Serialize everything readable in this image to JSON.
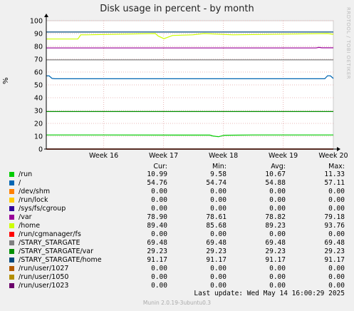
{
  "title": "Disk usage in percent - by month",
  "side_label": "RRDTOOL / TOBI OETIKER",
  "y_unit": "%",
  "headers": {
    "cur": "Cur:",
    "min": "Min:",
    "avg": "Avg:",
    "max": "Max:"
  },
  "last_update": "Last update:  Wed May 14 16:00:29 2025",
  "footer": "Munin 2.0.19-3ubuntu0.3",
  "chart_data": {
    "type": "line",
    "title": "Disk usage in percent - by month",
    "ylabel": "%",
    "ylim": [
      0,
      100
    ],
    "yticks": [
      0,
      10,
      20,
      30,
      40,
      50,
      60,
      70,
      80,
      90,
      100
    ],
    "xticks": [
      "Week 16",
      "Week 17",
      "Week 18",
      "Week 19",
      "Week 20"
    ],
    "grid": true,
    "series": [
      {
        "name": "/run",
        "color": "#00cc00",
        "x": [
          0,
          20,
          57,
          58,
          60,
          62,
          72,
          100
        ],
        "values": [
          11.0,
          11.0,
          10.9,
          10.2,
          9.6,
          10.8,
          11.0,
          11.0
        ]
      },
      {
        "name": "/",
        "color": "#0066b3",
        "x": [
          0,
          1,
          2,
          3,
          97,
          98,
          99,
          100
        ],
        "values": [
          57.0,
          57.0,
          55.0,
          54.8,
          54.8,
          57.1,
          57.0,
          55.0
        ]
      },
      {
        "name": "/dev/shm",
        "color": "#ff8000",
        "x": [
          0,
          100
        ],
        "values": [
          0,
          0
        ]
      },
      {
        "name": "/run/lock",
        "color": "#ffcc00",
        "x": [
          0,
          100
        ],
        "values": [
          0,
          0
        ]
      },
      {
        "name": "/sys/fs/cgroup",
        "color": "#330099",
        "x": [
          0,
          100
        ],
        "values": [
          0,
          0
        ]
      },
      {
        "name": "/var",
        "color": "#990099",
        "x": [
          0,
          94,
          95,
          96,
          100
        ],
        "values": [
          78.8,
          78.8,
          79.2,
          78.9,
          78.9
        ]
      },
      {
        "name": "/home",
        "color": "#ccff00",
        "x": [
          0,
          11,
          12,
          14,
          38,
          39,
          41,
          44,
          51,
          55,
          65,
          98,
          100
        ],
        "values": [
          85.7,
          85.7,
          89.0,
          89.0,
          90.0,
          88.0,
          86.0,
          88.5,
          89.0,
          90.0,
          89.0,
          90.0,
          89.4
        ]
      },
      {
        "name": "/run/cgmanager/fs",
        "color": "#ff0000",
        "x": [
          0,
          100
        ],
        "values": [
          0,
          0
        ]
      },
      {
        "name": "/STARY_STARGATE",
        "color": "#808080",
        "x": [
          0,
          100
        ],
        "values": [
          69.48,
          69.48
        ]
      },
      {
        "name": "/STARY_STARGATE/var",
        "color": "#008f00",
        "x": [
          0,
          100
        ],
        "values": [
          29.23,
          29.23
        ]
      },
      {
        "name": "/STARY_STARGATE/home",
        "color": "#00487d",
        "x": [
          0,
          100
        ],
        "values": [
          91.17,
          91.17
        ]
      },
      {
        "name": "/run/user/1027",
        "color": "#b35a00",
        "x": [
          0,
          100
        ],
        "values": [
          0,
          0
        ]
      },
      {
        "name": "/run/user/1050",
        "color": "#b38f00",
        "x": [
          0,
          100
        ],
        "values": [
          0,
          0
        ]
      },
      {
        "name": "/run/user/1023",
        "color": "#6b006b",
        "x": [
          0,
          100
        ],
        "values": [
          0,
          0
        ]
      }
    ]
  },
  "legend": [
    {
      "name": "/run",
      "color": "#00cc00",
      "cur": "10.99",
      "min": "9.58",
      "avg": "10.67",
      "max": "11.33"
    },
    {
      "name": "/",
      "color": "#0066b3",
      "cur": "54.76",
      "min": "54.74",
      "avg": "54.88",
      "max": "57.11"
    },
    {
      "name": "/dev/shm",
      "color": "#ff8000",
      "cur": "0.00",
      "min": "0.00",
      "avg": "0.00",
      "max": "0.00"
    },
    {
      "name": "/run/lock",
      "color": "#ffcc00",
      "cur": "0.00",
      "min": "0.00",
      "avg": "0.00",
      "max": "0.00"
    },
    {
      "name": "/sys/fs/cgroup",
      "color": "#330099",
      "cur": "0.00",
      "min": "0.00",
      "avg": "0.00",
      "max": "0.00"
    },
    {
      "name": "/var",
      "color": "#990099",
      "cur": "78.90",
      "min": "78.61",
      "avg": "78.82",
      "max": "79.18"
    },
    {
      "name": "/home",
      "color": "#ccff00",
      "cur": "89.40",
      "min": "85.68",
      "avg": "89.23",
      "max": "93.76"
    },
    {
      "name": "/run/cgmanager/fs",
      "color": "#ff0000",
      "cur": "0.00",
      "min": "0.00",
      "avg": "0.00",
      "max": "0.00"
    },
    {
      "name": "/STARY_STARGATE",
      "color": "#808080",
      "cur": "69.48",
      "min": "69.48",
      "avg": "69.48",
      "max": "69.48"
    },
    {
      "name": "/STARY_STARGATE/var",
      "color": "#008f00",
      "cur": "29.23",
      "min": "29.23",
      "avg": "29.23",
      "max": "29.23"
    },
    {
      "name": "/STARY_STARGATE/home",
      "color": "#00487d",
      "cur": "91.17",
      "min": "91.17",
      "avg": "91.17",
      "max": "91.17"
    },
    {
      "name": "/run/user/1027",
      "color": "#b35a00",
      "cur": "0.00",
      "min": "0.00",
      "avg": "0.00",
      "max": "0.00"
    },
    {
      "name": "/run/user/1050",
      "color": "#b38f00",
      "cur": "0.00",
      "min": "0.00",
      "avg": "0.00",
      "max": "0.00"
    },
    {
      "name": "/run/user/1023",
      "color": "#6b006b",
      "cur": "0.00",
      "min": "0.00",
      "avg": "0.00",
      "max": "0.00"
    }
  ]
}
